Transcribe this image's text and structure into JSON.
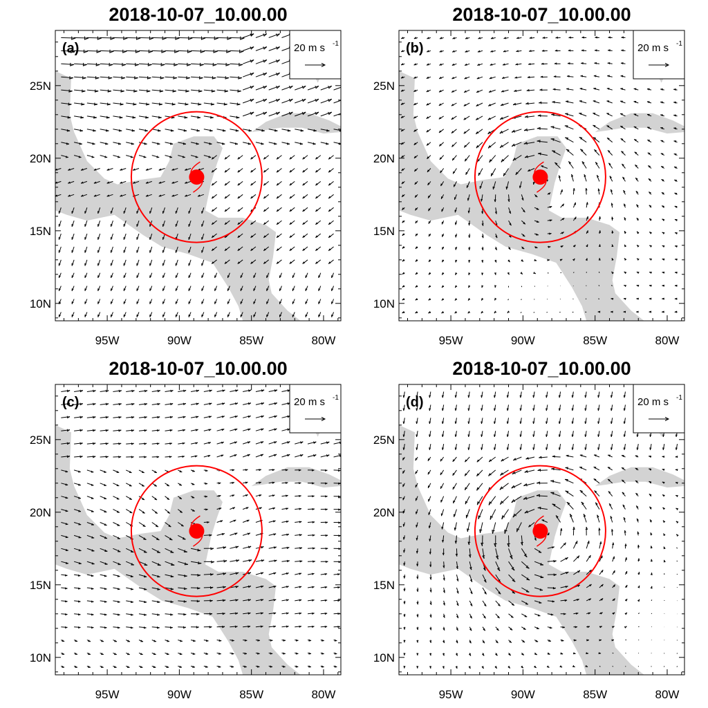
{
  "figure": {
    "panels": [
      {
        "letter": "(a)",
        "title": "2018-10-07_10.00.00",
        "field": "a"
      },
      {
        "letter": "(b)",
        "title": "2018-10-07_10.00.00",
        "field": "b"
      },
      {
        "letter": "(c)",
        "title": "2018-10-07_10.00.00",
        "field": "c"
      },
      {
        "letter": "(d)",
        "title": "2018-10-07_10.00.00",
        "field": "d"
      }
    ],
    "reference_vector": {
      "label": "20 m s",
      "superscript": "-1",
      "magnitude": 20
    },
    "lon_ticks": [
      "95W",
      "90W",
      "85W",
      "80W"
    ],
    "lat_ticks": [
      "25N",
      "20N",
      "15N",
      "10N"
    ],
    "storm_center": {
      "lon": -88.8,
      "lat": 18.7
    },
    "circle_radius_deg": 4.5,
    "colors": {
      "land": "#d3d3d3",
      "storm": "#ff0000",
      "vector": "#000000"
    }
  },
  "chart_data": {
    "type": "vector-field-map",
    "domain": {
      "lon_range": [
        -98.6,
        -78.8
      ],
      "lat_range": [
        8.8,
        28.8
      ]
    },
    "valid_time": "2018-10-07_10.00.00",
    "storm_center": {
      "lon": -88.8,
      "lat": 18.7
    },
    "grid_spacing_deg": 0.9,
    "reference_vector_ms": 20
  }
}
